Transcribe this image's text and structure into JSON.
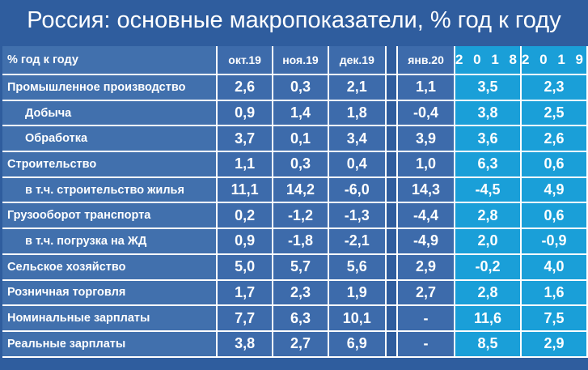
{
  "title": "Россия: основные макропоказатели, % год к году",
  "table": {
    "header": {
      "label": "% год к году",
      "cols": [
        "окт.19",
        "ноя.19",
        "дек.19",
        "янв.20",
        "2 0 1 8",
        "2 0 1 9"
      ]
    },
    "rows": [
      {
        "label": "Промышленное производство",
        "indent": false,
        "values": [
          "2,6",
          "0,3",
          "2,1",
          "1,1",
          "3,5",
          "2,3"
        ]
      },
      {
        "label": "Добыча",
        "indent": true,
        "values": [
          "0,9",
          "1,4",
          "1,8",
          "-0,4",
          "3,8",
          "2,5"
        ]
      },
      {
        "label": "Обработка",
        "indent": true,
        "values": [
          "3,7",
          "0,1",
          "3,4",
          "3,9",
          "3,6",
          "2,6"
        ]
      },
      {
        "label": "Строительство",
        "indent": false,
        "values": [
          "1,1",
          "0,3",
          "0,4",
          "1,0",
          "6,3",
          "0,6"
        ]
      },
      {
        "label": "в т.ч. строительство жилья",
        "indent": true,
        "values": [
          "11,1",
          "14,2",
          "-6,0",
          "14,3",
          "-4,5",
          "4,9"
        ]
      },
      {
        "label": "Грузооборот транспорта",
        "indent": false,
        "values": [
          "0,2",
          "-1,2",
          "-1,3",
          "-4,4",
          "2,8",
          "0,6"
        ]
      },
      {
        "label": "в т.ч. погрузка на ЖД",
        "indent": true,
        "values": [
          "0,9",
          "-1,8",
          "-2,1",
          "-4,9",
          "2,0",
          "-0,9"
        ]
      },
      {
        "label": "Сельское хозяйство",
        "indent": false,
        "values": [
          "5,0",
          "5,7",
          "5,6",
          "2,9",
          "-0,2",
          "4,0"
        ]
      },
      {
        "label": "Розничная торговля",
        "indent": false,
        "values": [
          "1,7",
          "2,3",
          "1,9",
          "2,7",
          "2,8",
          "1,6"
        ]
      },
      {
        "label": "Номинальные зарплаты",
        "indent": false,
        "values": [
          "7,7",
          "6,3",
          "10,1",
          "-",
          "11,6",
          "7,5"
        ]
      },
      {
        "label": "Реальные зарплаты",
        "indent": false,
        "values": [
          "3,8",
          "2,7",
          "6,9",
          "-",
          "8,5",
          "2,9"
        ]
      }
    ]
  },
  "colors": {
    "background": "#2f5d9e",
    "cell": "#3d6bab",
    "highlight": "#1a9fd8",
    "negative": "#b8001a"
  }
}
